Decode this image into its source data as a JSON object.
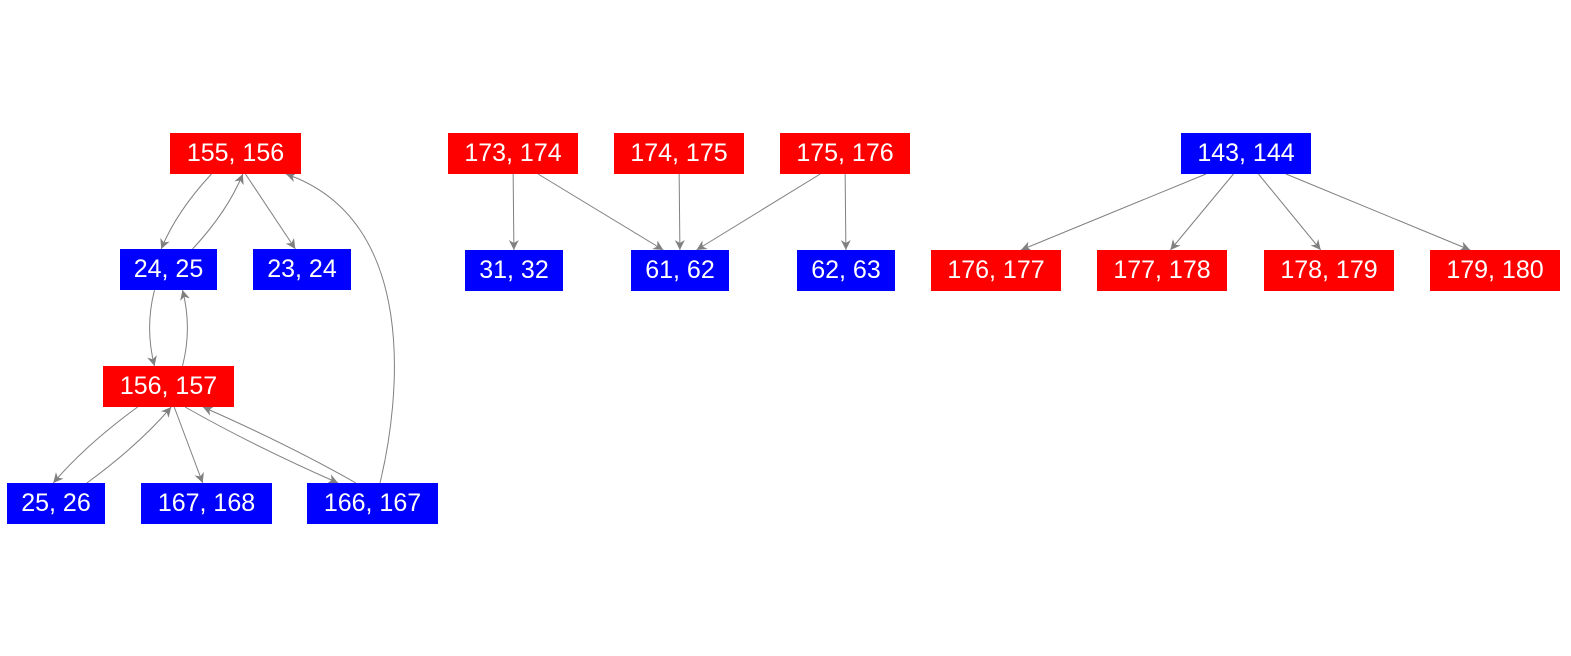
{
  "colors": {
    "red": "#ff0000",
    "blue": "#0000ff",
    "edge": "#808080",
    "label": "#ffffff"
  },
  "nodes": [
    {
      "id": "155, 156",
      "color": "red"
    },
    {
      "id": "24, 25",
      "color": "blue"
    },
    {
      "id": "23, 24",
      "color": "blue"
    },
    {
      "id": "156, 157",
      "color": "red"
    },
    {
      "id": "25, 26",
      "color": "blue"
    },
    {
      "id": "167, 168",
      "color": "blue"
    },
    {
      "id": "166, 167",
      "color": "blue"
    },
    {
      "id": "173, 174",
      "color": "red"
    },
    {
      "id": "174, 175",
      "color": "red"
    },
    {
      "id": "175, 176",
      "color": "red"
    },
    {
      "id": "31, 32",
      "color": "blue"
    },
    {
      "id": "61, 62",
      "color": "blue"
    },
    {
      "id": "62, 63",
      "color": "blue"
    },
    {
      "id": "143, 144",
      "color": "blue"
    },
    {
      "id": "176, 177",
      "color": "red"
    },
    {
      "id": "177, 178",
      "color": "red"
    },
    {
      "id": "178, 179",
      "color": "red"
    },
    {
      "id": "179, 180",
      "color": "red"
    }
  ],
  "edges": [
    {
      "from": "155, 156",
      "to": "24, 25"
    },
    {
      "from": "24, 25",
      "to": "155, 156"
    },
    {
      "from": "155, 156",
      "to": "23, 24"
    },
    {
      "from": "24, 25",
      "to": "156, 157"
    },
    {
      "from": "156, 157",
      "to": "24, 25"
    },
    {
      "from": "156, 157",
      "to": "25, 26"
    },
    {
      "from": "25, 26",
      "to": "156, 157"
    },
    {
      "from": "156, 157",
      "to": "167, 168"
    },
    {
      "from": "156, 157",
      "to": "166, 167"
    },
    {
      "from": "166, 167",
      "to": "156, 157"
    },
    {
      "from": "166, 167",
      "to": "155, 156"
    },
    {
      "from": "173, 174",
      "to": "31, 32"
    },
    {
      "from": "173, 174",
      "to": "61, 62"
    },
    {
      "from": "174, 175",
      "to": "61, 62"
    },
    {
      "from": "175, 176",
      "to": "61, 62"
    },
    {
      "from": "175, 176",
      "to": "62, 63"
    },
    {
      "from": "143, 144",
      "to": "176, 177"
    },
    {
      "from": "143, 144",
      "to": "177, 178"
    },
    {
      "from": "143, 144",
      "to": "178, 179"
    },
    {
      "from": "143, 144",
      "to": "179, 180"
    }
  ]
}
